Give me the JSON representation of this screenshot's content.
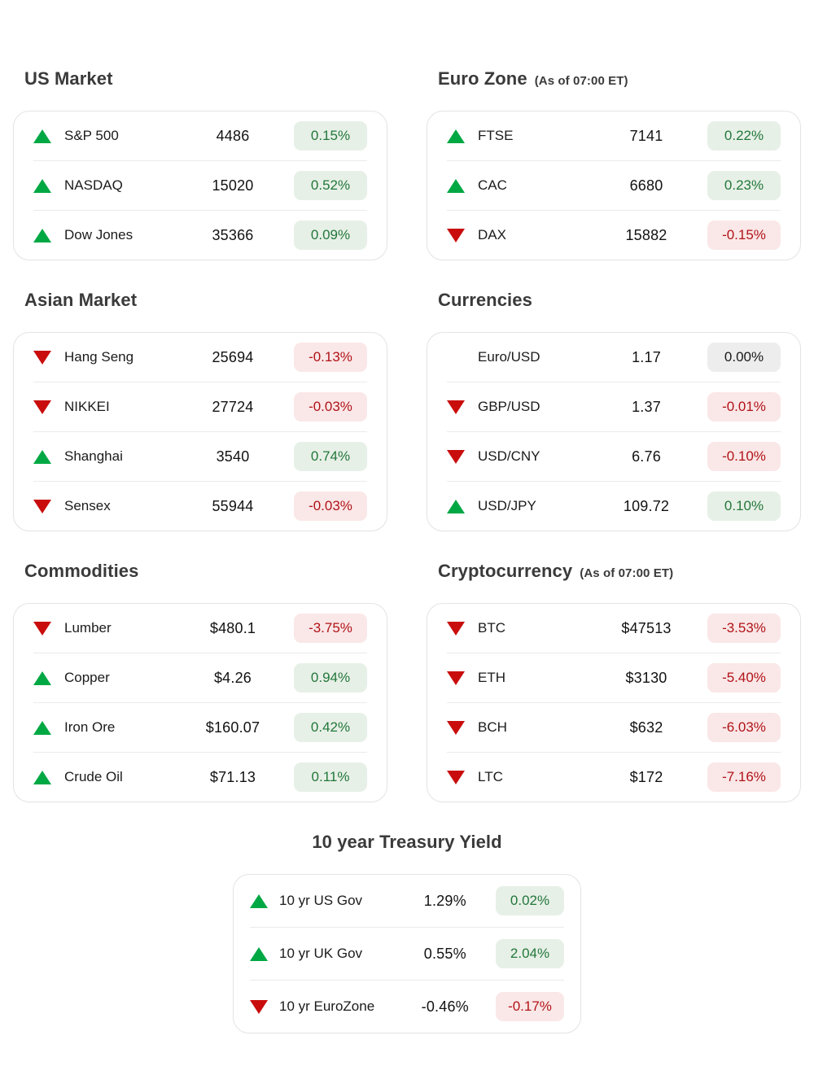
{
  "colors": {
    "up_arrow": "#00a844",
    "down_arrow": "#c90d0d",
    "badge_positive_bg": "#e7f0e7",
    "badge_positive_text": "#22773a",
    "badge_negative_bg": "#fae7e7",
    "badge_negative_text": "#b01318",
    "badge_neutral_bg": "#ededed",
    "badge_neutral_text": "#191919",
    "card_border": "#e4e4e4",
    "title_text": "#3a3a3a"
  },
  "sections": [
    {
      "id": "us-market",
      "title": "US Market",
      "subtitle": "",
      "rows": [
        {
          "direction": "up",
          "label": "S&P 500",
          "value": "4486",
          "change": "0.15%",
          "sentiment": "positive"
        },
        {
          "direction": "up",
          "label": "NASDAQ",
          "value": "15020",
          "change": "0.52%",
          "sentiment": "positive"
        },
        {
          "direction": "up",
          "label": "Dow Jones",
          "value": "35366",
          "change": "0.09%",
          "sentiment": "positive"
        }
      ]
    },
    {
      "id": "euro-zone",
      "title": "Euro Zone",
      "subtitle": "(As of 07:00 ET)",
      "rows": [
        {
          "direction": "up",
          "label": "FTSE",
          "value": "7141",
          "change": "0.22%",
          "sentiment": "positive"
        },
        {
          "direction": "up",
          "label": "CAC",
          "value": "6680",
          "change": "0.23%",
          "sentiment": "positive"
        },
        {
          "direction": "down",
          "label": "DAX",
          "value": "15882",
          "change": "-0.15%",
          "sentiment": "negative"
        }
      ]
    },
    {
      "id": "asian-market",
      "title": "Asian Market",
      "subtitle": "",
      "rows": [
        {
          "direction": "down",
          "label": "Hang Seng",
          "value": "25694",
          "change": "-0.13%",
          "sentiment": "negative"
        },
        {
          "direction": "down",
          "label": "NIKKEI",
          "value": "27724",
          "change": "-0.03%",
          "sentiment": "negative"
        },
        {
          "direction": "up",
          "label": "Shanghai",
          "value": "3540",
          "change": "0.74%",
          "sentiment": "positive"
        },
        {
          "direction": "down",
          "label": "Sensex",
          "value": "55944",
          "change": "-0.03%",
          "sentiment": "negative"
        }
      ]
    },
    {
      "id": "currencies",
      "title": "Currencies",
      "subtitle": "",
      "rows": [
        {
          "direction": "none",
          "label": "Euro/USD",
          "value": "1.17",
          "change": "0.00%",
          "sentiment": "neutral"
        },
        {
          "direction": "down",
          "label": "GBP/USD",
          "value": "1.37",
          "change": "-0.01%",
          "sentiment": "negative"
        },
        {
          "direction": "down",
          "label": "USD/CNY",
          "value": "6.76",
          "change": "-0.10%",
          "sentiment": "negative"
        },
        {
          "direction": "up",
          "label": "USD/JPY",
          "value": "109.72",
          "change": "0.10%",
          "sentiment": "positive"
        }
      ]
    },
    {
      "id": "commodities",
      "title": "Commodities",
      "subtitle": "",
      "rows": [
        {
          "direction": "down",
          "label": "Lumber",
          "value": "$480.1",
          "change": "-3.75%",
          "sentiment": "negative"
        },
        {
          "direction": "up",
          "label": "Copper",
          "value": "$4.26",
          "change": "0.94%",
          "sentiment": "positive"
        },
        {
          "direction": "up",
          "label": "Iron Ore",
          "value": "$160.07",
          "change": "0.42%",
          "sentiment": "positive"
        },
        {
          "direction": "up",
          "label": "Crude Oil",
          "value": "$71.13",
          "change": "0.11%",
          "sentiment": "positive"
        }
      ]
    },
    {
      "id": "cryptocurrency",
      "title": "Cryptocurrency",
      "subtitle": "(As of 07:00 ET)",
      "rows": [
        {
          "direction": "down",
          "label": "BTC",
          "value": "$47513",
          "change": "-3.53%",
          "sentiment": "negative"
        },
        {
          "direction": "down",
          "label": "ETH",
          "value": "$3130",
          "change": "-5.40%",
          "sentiment": "negative"
        },
        {
          "direction": "down",
          "label": "BCH",
          "value": "$632",
          "change": "-6.03%",
          "sentiment": "negative"
        },
        {
          "direction": "down",
          "label": "LTC",
          "value": "$172",
          "change": "-7.16%",
          "sentiment": "negative"
        }
      ]
    },
    {
      "id": "treasury-yield",
      "title": "10 year Treasury Yield",
      "subtitle": "",
      "rows": [
        {
          "direction": "up",
          "label": "10 yr US Gov",
          "value": "1.29%",
          "change": "0.02%",
          "sentiment": "positive"
        },
        {
          "direction": "up",
          "label": "10 yr UK Gov",
          "value": "0.55%",
          "change": "2.04%",
          "sentiment": "positive"
        },
        {
          "direction": "down",
          "label": "10 yr EuroZone",
          "value": "-0.46%",
          "change": "-0.17%",
          "sentiment": "negative"
        }
      ]
    }
  ]
}
